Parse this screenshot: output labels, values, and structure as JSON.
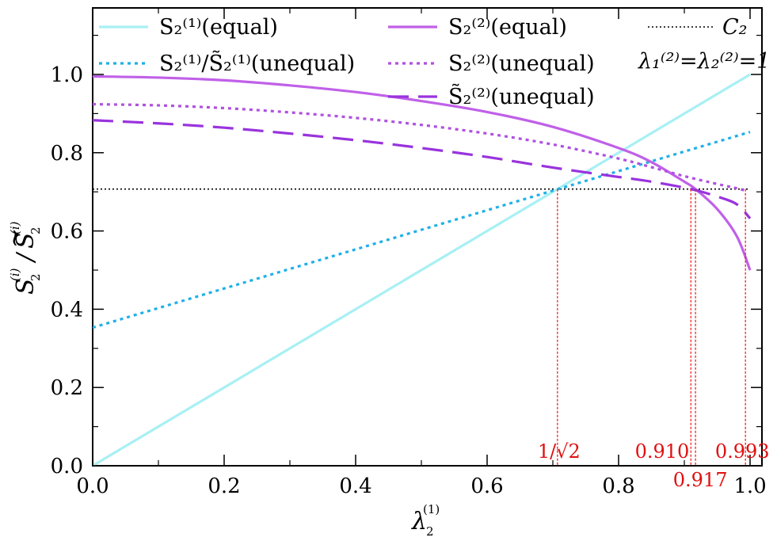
{
  "chart_data": {
    "type": "line",
    "xlabel": "λ₂⁽¹⁾",
    "ylabel": "S₂⁽ⁱ⁾/S̃₂⁽ⁱ⁾",
    "xlim": [
      0,
      1
    ],
    "ylim": [
      0,
      1.17
    ],
    "x_ticks": [
      0.0,
      0.2,
      0.4,
      0.6,
      0.8,
      1.0
    ],
    "x_tick_labels": [
      "0.0",
      "0.2",
      "0.4",
      "0.6",
      "0.8",
      "1.0"
    ],
    "y_ticks": [
      0.0,
      0.2,
      0.4,
      0.6,
      0.8,
      1.0
    ],
    "y_tick_labels": [
      "0.0",
      "0.2",
      "0.4",
      "0.6",
      "0.8",
      "1.0"
    ],
    "grid": false,
    "legend_position": "top",
    "condition_text": "λ₁⁽²⁾=λ₂⁽²⁾=1",
    "series": [
      {
        "name": "S₂⁽¹⁾(equal)",
        "color": "#a8f0f4",
        "style": "solid",
        "x": [
          0,
          1.0
        ],
        "y": [
          0.0,
          1.0
        ]
      },
      {
        "name": "S₂⁽¹⁾/S̃₂⁽¹⁾(unequal)",
        "color": "#1fb0e8",
        "style": "dotted",
        "x": [
          0,
          1.0
        ],
        "y": [
          0.353,
          0.853
        ]
      },
      {
        "name": "S₂⁽²⁾(equal)",
        "color": "#c060e8",
        "style": "solid",
        "x": [
          0,
          0.1,
          0.2,
          0.3,
          0.4,
          0.5,
          0.6,
          0.7,
          0.8,
          0.85,
          0.9,
          0.917,
          0.95,
          0.98,
          1.0
        ],
        "y": [
          0.995,
          0.992,
          0.985,
          0.972,
          0.955,
          0.932,
          0.904,
          0.866,
          0.812,
          0.776,
          0.726,
          0.707,
          0.656,
          0.586,
          0.5
        ]
      },
      {
        "name": "S₂⁽²⁾(unequal)",
        "color": "#b050e0",
        "style": "dotted",
        "x": [
          0,
          0.1,
          0.2,
          0.3,
          0.4,
          0.5,
          0.6,
          0.7,
          0.8,
          0.85,
          0.9,
          0.95,
          0.98,
          0.993
        ],
        "y": [
          0.924,
          0.921,
          0.914,
          0.903,
          0.889,
          0.871,
          0.849,
          0.821,
          0.785,
          0.763,
          0.74,
          0.72,
          0.709,
          0.703
        ]
      },
      {
        "name": "S̃₂⁽²⁾(unequal)",
        "color": "#9933dd",
        "style": "dashed",
        "x": [
          0,
          0.1,
          0.2,
          0.3,
          0.4,
          0.5,
          0.6,
          0.7,
          0.8,
          0.85,
          0.91,
          0.95,
          0.98,
          1.0
        ],
        "y": [
          0.883,
          0.875,
          0.864,
          0.849,
          0.832,
          0.812,
          0.789,
          0.762,
          0.738,
          0.726,
          0.707,
          0.688,
          0.668,
          0.632
        ]
      },
      {
        "name": "C₂",
        "color": "#000000",
        "style": "dotted",
        "x": [
          0,
          1.0
        ],
        "y": [
          0.707,
          0.707
        ]
      }
    ],
    "annotations": [
      {
        "label": "1/√2",
        "x": 0.707,
        "y": 0.707
      },
      {
        "label": "0.910",
        "x": 0.91,
        "y": 0.707
      },
      {
        "label": "0.917",
        "x": 0.917,
        "y": 0.707
      },
      {
        "label": "0.993",
        "x": 0.993,
        "y": 0.707
      }
    ]
  }
}
